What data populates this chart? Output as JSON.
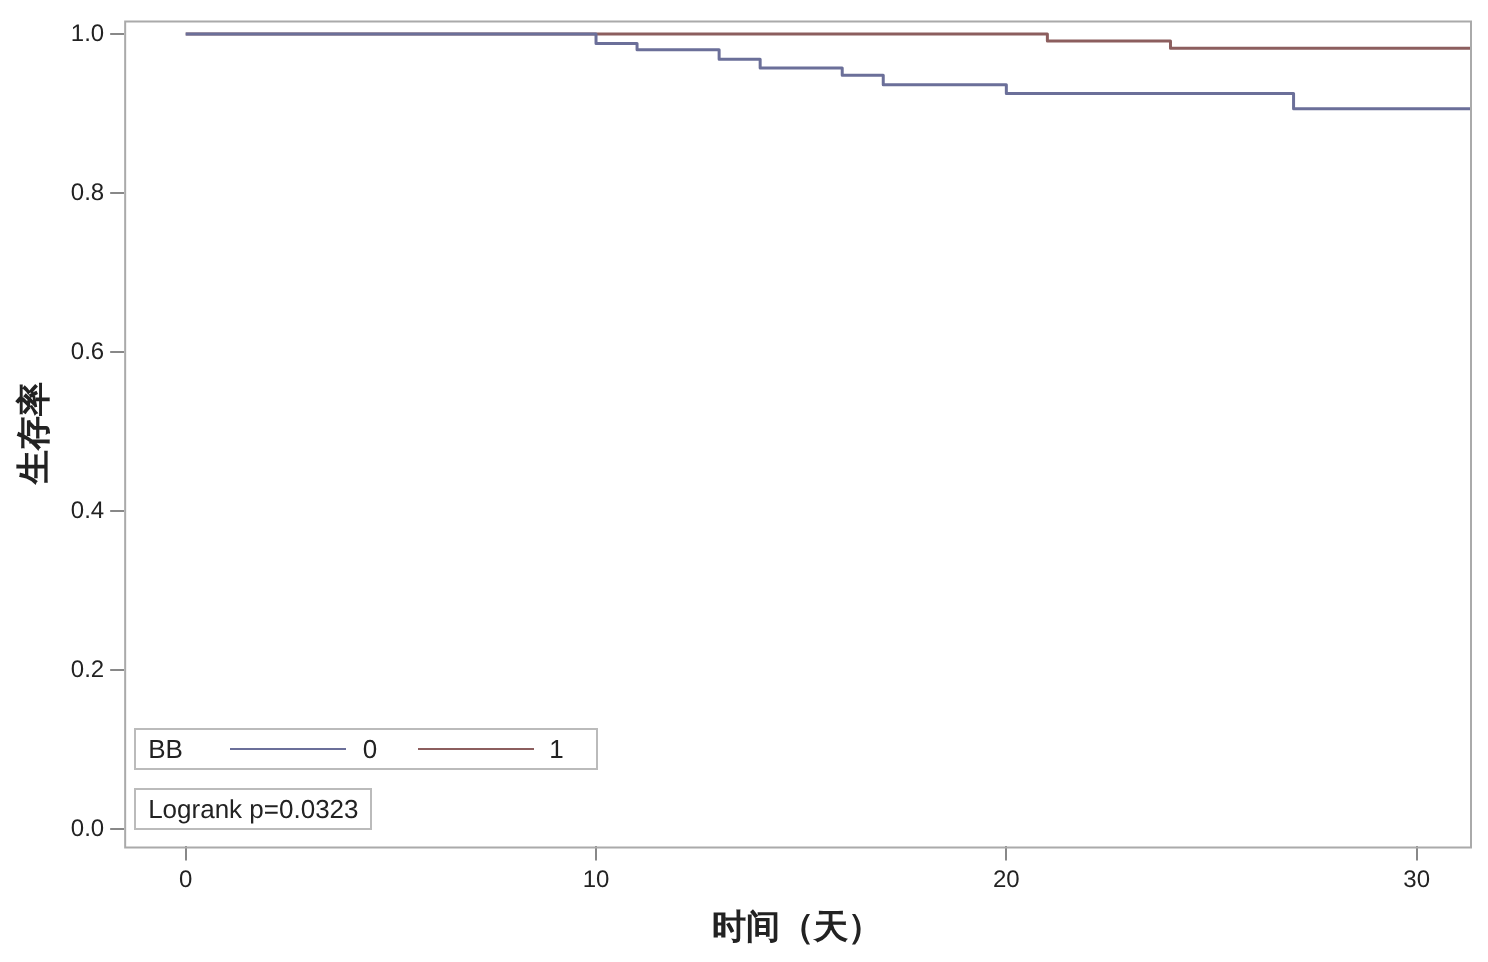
{
  "chart_data": {
    "type": "step",
    "xlabel": "时间（天）",
    "ylabel": "生存率",
    "legend_title": "BB",
    "legend": "bottom left",
    "grid": false,
    "marker": "none",
    "line_style": "solid",
    "xlim": [
      -1.5,
      31.3
    ],
    "xticks": [
      0,
      10,
      20,
      30
    ],
    "ylim": [
      -0.022,
      1.017
    ],
    "yticks": [
      {
        "value": 0,
        "label": "0.0"
      },
      {
        "value": 0.2,
        "label": "0.2"
      },
      {
        "value": 0.4,
        "label": "0.4"
      },
      {
        "value": 0.6,
        "label": "0.6"
      },
      {
        "value": 0.8,
        "label": "0.8"
      },
      {
        "value": 1,
        "label": "1.0"
      }
    ],
    "series": [
      {
        "name": "0",
        "color": "#6b6f99",
        "x": [
          0,
          10,
          11,
          13,
          14,
          16,
          17,
          20,
          27,
          31.3
        ],
        "values": [
          1,
          0.988,
          0.98,
          0.968,
          0.957,
          0.948,
          0.936,
          0.925,
          0.906,
          0.906
        ]
      },
      {
        "name": "1",
        "color": "#8c5e5e",
        "x": [
          0,
          21,
          24,
          31.3
        ],
        "values": [
          1,
          0.991,
          0.982,
          0.982
        ]
      }
    ],
    "annotations": [
      "Logrank p=0.0323"
    ]
  }
}
